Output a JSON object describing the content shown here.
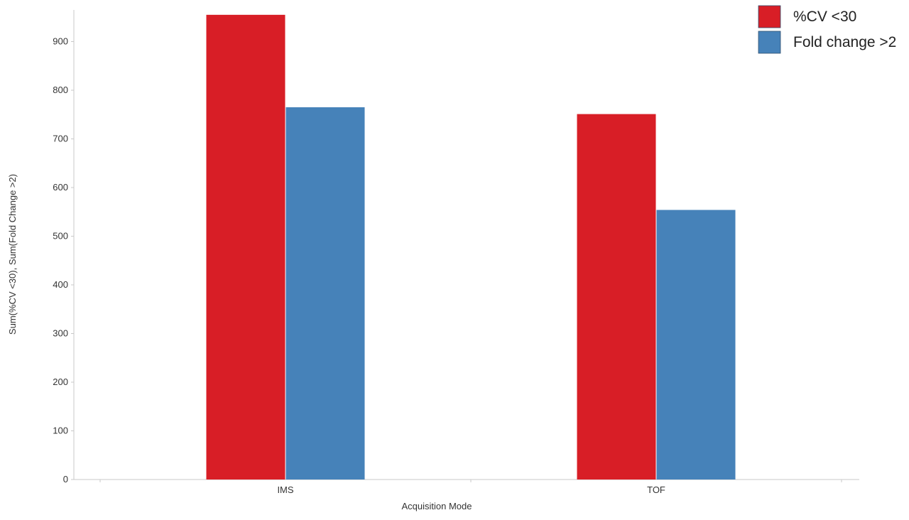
{
  "chart_data": {
    "type": "bar",
    "categories": [
      "IMS",
      "TOF"
    ],
    "series": [
      {
        "name": "%CV <30",
        "color": "#d81e26",
        "values": [
          955,
          751
        ]
      },
      {
        "name": "Fold change >2",
        "color": "#4682b9",
        "values": [
          765,
          554
        ]
      }
    ],
    "xlabel": "Acquisition Mode",
    "ylabel": "Sum(%CV <30), Sum(Fold Change >2)",
    "ylim": [
      0,
      965
    ],
    "yticks": [
      0,
      100,
      200,
      300,
      400,
      500,
      600,
      700,
      800,
      900
    ],
    "grid": false,
    "legend_position": "top-right"
  }
}
